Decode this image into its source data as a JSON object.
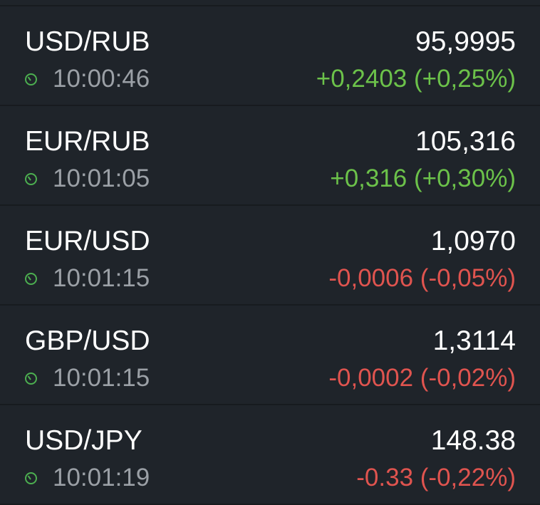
{
  "colors": {
    "up": "#6cc24a",
    "down": "#e0544f",
    "background": "#1f242a"
  },
  "quotes": [
    {
      "pair": "USD/RUB",
      "time": "10:00:46",
      "price": "95,9995",
      "change": "+0,2403 (+0,25%)",
      "direction": "up"
    },
    {
      "pair": "EUR/RUB",
      "time": "10:01:05",
      "price": "105,316",
      "change": "+0,316 (+0,30%)",
      "direction": "up"
    },
    {
      "pair": "EUR/USD",
      "time": "10:01:15",
      "price": "1,0970",
      "change": "-0,0006 (-0,05%)",
      "direction": "down"
    },
    {
      "pair": "GBP/USD",
      "time": "10:01:15",
      "price": "1,3114",
      "change": "-0,0002 (-0,02%)",
      "direction": "down"
    },
    {
      "pair": "USD/JPY",
      "time": "10:01:19",
      "price": "148.38",
      "change": "-0.33 (-0,22%)",
      "direction": "down"
    }
  ]
}
